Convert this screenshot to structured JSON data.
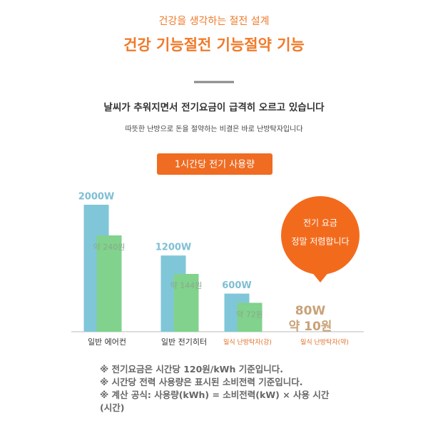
{
  "header": {
    "subtitle": "건강을 생각하는 절전 설계",
    "title": "건강 기능절전 기능절약 기능",
    "headline": "날씨가 추워지면서 전기요금이 급격히 오르고 있습니다",
    "description": "따뜻한 난방으로 돈을 절약하는 비결은 바로 난방탁자입니다"
  },
  "chart_data": {
    "type": "bar",
    "title": "1시간당 전기 사용량",
    "categories": [
      "일반 에어컨",
      "일반 전기히터",
      "일식 난방탁자(강)",
      "일식 난방탁자(약)"
    ],
    "series": [
      {
        "color": "#7fc6d8",
        "values": [
          2000,
          1200,
          600,
          80
        ],
        "value_labels": [
          "2000W",
          "1200W",
          "600W",
          "80W"
        ]
      },
      {
        "color": "#80d28c",
        "values": [
          240,
          144,
          72,
          10
        ],
        "value_labels": [
          "약 240원",
          "약 144원",
          "약 72원",
          "약 10원"
        ]
      }
    ]
  },
  "callout": [
    "전기 요금",
    "정말 저렴합니다"
  ],
  "notes": [
    "※ 전기요금은 시간당 120원/kWh 기준입니다.",
    "※ 시간당 전력 사용량은 표시된 소비전력 기준입니다.",
    "※ 계산 공식: 사용량(kWh) = 소비전력(kW) × 사용 시간(시간)"
  ]
}
